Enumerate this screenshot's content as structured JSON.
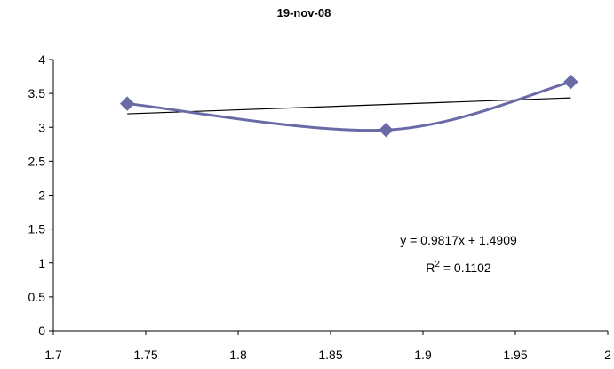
{
  "chart_data": {
    "type": "scatter",
    "title": "19-nov-08",
    "xlabel": "",
    "ylabel": "",
    "xlim": [
      1.7,
      2
    ],
    "ylim": [
      0,
      4
    ],
    "x_ticks": [
      "1.7",
      "1.75",
      "1.8",
      "1.85",
      "1.9",
      "1.95",
      "2"
    ],
    "y_ticks": [
      "0",
      "0.5",
      "1",
      "1.5",
      "2",
      "2.5",
      "3",
      "3.5",
      "4"
    ],
    "series": [
      {
        "x": [
          1.74,
          1.88,
          1.98
        ],
        "y": [
          3.35,
          2.96,
          3.67
        ],
        "color": "#6a6aa6",
        "marker": "diamond",
        "smoothed_line": true
      }
    ],
    "trendline": {
      "slope": 0.9817,
      "intercept": 1.4909,
      "x_range": [
        1.74,
        1.98
      ],
      "color": "#000000",
      "equation_label": "y = 0.9817x + 1.4909",
      "r2_prefix": "R",
      "r2_sup": "2",
      "r2_value": " = 0.1102"
    },
    "grid": false,
    "legend": "none"
  }
}
